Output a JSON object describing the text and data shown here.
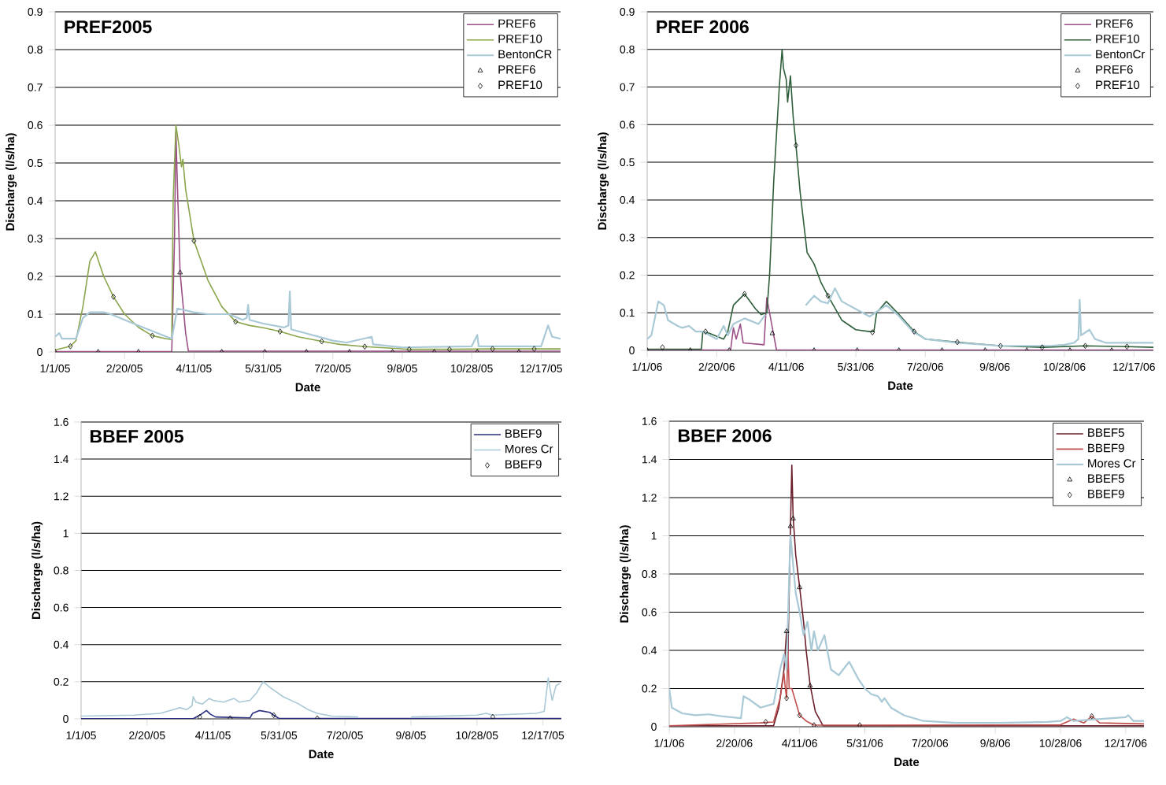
{
  "chart_data": [
    {
      "type": "line",
      "title": "PREF2005",
      "xlabel": "Date",
      "ylabel": "Discharge (l/s/ha)",
      "grid": "y",
      "legend": "top right",
      "xlim": [
        "2005-01-01",
        "2005-12-31"
      ],
      "ylim": [
        0,
        0.9
      ],
      "yticks": [
        0,
        0.1,
        0.2,
        0.3,
        0.4,
        0.5,
        0.6,
        0.7,
        0.8,
        0.9
      ],
      "xticks": [
        {
          "value": "2005-01-01",
          "label": "1/1/05"
        },
        {
          "value": "2005-02-20",
          "label": "2/20/05"
        },
        {
          "value": "2005-04-11",
          "label": "4/11/05"
        },
        {
          "value": "2005-05-31",
          "label": "5/31/05"
        },
        {
          "value": "2005-07-20",
          "label": "7/20/05"
        },
        {
          "value": "2005-09-08",
          "label": "9/8/05"
        },
        {
          "value": "2005-10-28",
          "label": "10/28/05"
        },
        {
          "value": "2005-12-17",
          "label": "12/17/05"
        }
      ],
      "series": [
        {
          "name": "PREF6",
          "marker": "none",
          "color": "#9b4f86",
          "x": [
            "2005-01-01",
            "2005-03-26",
            "2005-03-28",
            "2005-03-29",
            "2005-03-30",
            "2005-04-01",
            "2005-04-05",
            "2005-04-07",
            "2005-12-31"
          ],
          "values": [
            0.001,
            0.001,
            0.3,
            0.58,
            0.45,
            0.21,
            0.05,
            0.002,
            0.002
          ]
        },
        {
          "name": "PREF10",
          "marker": "none",
          "color": "#8aa54b",
          "x": [
            "2005-01-01",
            "2005-01-12",
            "2005-01-16",
            "2005-01-21",
            "2005-01-26",
            "2005-01-30",
            "2005-02-05",
            "2005-02-12",
            "2005-02-20",
            "2005-03-02",
            "2005-03-12",
            "2005-03-22",
            "2005-03-26",
            "2005-03-27",
            "2005-03-29",
            "2005-03-31",
            "2005-04-02",
            "2005-04-03",
            "2005-04-05",
            "2005-04-11",
            "2005-04-21",
            "2005-05-01",
            "2005-05-11",
            "2005-05-21",
            "2005-05-31",
            "2005-06-12",
            "2005-06-25",
            "2005-07-12",
            "2005-07-25",
            "2005-08-12",
            "2005-09-13",
            "2005-10-12",
            "2005-11-12",
            "2005-12-12",
            "2005-12-31"
          ],
          "values": [
            0.005,
            0.015,
            0.03,
            0.12,
            0.24,
            0.265,
            0.2,
            0.146,
            0.1,
            0.065,
            0.043,
            0.035,
            0.033,
            0.4,
            0.6,
            0.55,
            0.49,
            0.51,
            0.43,
            0.294,
            0.19,
            0.12,
            0.08,
            0.07,
            0.064,
            0.054,
            0.04,
            0.028,
            0.02,
            0.014,
            0.007,
            0.007,
            0.008,
            0.008,
            0.008
          ]
        },
        {
          "name": "BentonCR",
          "marker": "none",
          "color": "#a9c9d6",
          "x": [
            "2005-01-01",
            "2005-01-04",
            "2005-01-06",
            "2005-01-16",
            "2005-01-21",
            "2005-01-26",
            "2005-02-05",
            "2005-02-10",
            "2005-03-02",
            "2005-03-26",
            "2005-03-30",
            "2005-04-11",
            "2005-04-21",
            "2005-05-06",
            "2005-05-16",
            "2005-05-19",
            "2005-05-20",
            "2005-05-21",
            "2005-05-31",
            "2005-06-15",
            "2005-06-18",
            "2005-06-19",
            "2005-06-20",
            "2005-06-30",
            "2005-07-20",
            "2005-07-30",
            "2005-08-17",
            "2005-08-18",
            "2005-09-08",
            "2005-10-28",
            "2005-11-01",
            "2005-11-02",
            "2005-12-17",
            "2005-12-22",
            "2005-12-25",
            "2005-12-31"
          ],
          "values": [
            0.04,
            0.05,
            0.035,
            0.035,
            0.09,
            0.105,
            0.105,
            0.1,
            0.07,
            0.035,
            0.115,
            0.105,
            0.1,
            0.1,
            0.085,
            0.09,
            0.125,
            0.085,
            0.075,
            0.065,
            0.07,
            0.16,
            0.06,
            0.05,
            0.03,
            0.025,
            0.04,
            0.02,
            0.012,
            0.015,
            0.045,
            0.015,
            0.015,
            0.07,
            0.04,
            0.035
          ]
        },
        {
          "name": "PREF6",
          "type": "scatter",
          "marker": "triangle",
          "color": "#000000",
          "x": [
            "2005-01-01",
            "2005-02-01",
            "2005-03-02",
            "2005-04-01",
            "2005-05-01",
            "2005-06-01",
            "2005-07-01",
            "2005-08-01",
            "2005-09-01",
            "2005-10-01",
            "2005-11-01",
            "2005-12-01"
          ],
          "values": [
            0,
            0,
            0,
            0.21,
            0,
            0,
            0,
            0,
            0,
            0,
            0,
            0
          ]
        },
        {
          "name": "PREF10",
          "type": "scatter",
          "marker": "diamond",
          "color": "#000000",
          "x": [
            "2005-01-12",
            "2005-02-12",
            "2005-03-12",
            "2005-04-11",
            "2005-05-11",
            "2005-06-12",
            "2005-07-12",
            "2005-08-12",
            "2005-09-13",
            "2005-10-12",
            "2005-11-12",
            "2005-12-12"
          ],
          "values": [
            0.015,
            0.146,
            0.043,
            0.294,
            0.08,
            0.054,
            0.028,
            0.014,
            0.007,
            0.007,
            0.008,
            0.008
          ]
        }
      ]
    },
    {
      "type": "line",
      "title": "PREF 2006",
      "xlabel": "Date",
      "ylabel": "Discharge (l/s/ha)",
      "grid": "y",
      "legend": "top right",
      "xlim": [
        "2006-01-01",
        "2006-12-31"
      ],
      "ylim": [
        0,
        0.9
      ],
      "yticks": [
        0,
        0.1,
        0.2,
        0.3,
        0.4,
        0.5,
        0.6,
        0.7,
        0.8,
        0.9
      ],
      "xticks": [
        {
          "value": "2006-01-01",
          "label": "1/1/06"
        },
        {
          "value": "2006-02-20",
          "label": "2/20/06"
        },
        {
          "value": "2006-04-11",
          "label": "4/11/06"
        },
        {
          "value": "2006-05-31",
          "label": "5/31/06"
        },
        {
          "value": "2006-07-20",
          "label": "7/20/06"
        },
        {
          "value": "2006-09-08",
          "label": "9/8/06"
        },
        {
          "value": "2006-10-28",
          "label": "10/28/06"
        },
        {
          "value": "2006-12-17",
          "label": "12/17/06"
        }
      ],
      "series": [
        {
          "name": "PREF6",
          "marker": "none",
          "color": "#9b4f86",
          "x": [
            "2006-01-01",
            "2006-03-02",
            "2006-03-04",
            "2006-03-06",
            "2006-03-09",
            "2006-03-11",
            "2006-03-26",
            "2006-03-28",
            "2006-03-30",
            "2006-04-02",
            "2006-04-04",
            "2006-12-31"
          ],
          "values": [
            0.001,
            0.001,
            0.06,
            0.03,
            0.07,
            0.02,
            0.015,
            0.14,
            0.1,
            0.04,
            0.001,
            0.001
          ]
        },
        {
          "name": "PREF10",
          "marker": "none",
          "color": "#2e5e3a",
          "x": [
            "2006-01-01",
            "2006-02-09",
            "2006-02-10",
            "2006-02-15",
            "2006-02-25",
            "2006-02-28",
            "2006-03-04",
            "2006-03-12",
            "2006-03-20",
            "2006-03-24",
            "2006-03-28",
            "2006-03-30",
            "2006-04-02",
            "2006-04-06",
            "2006-04-08",
            "2006-04-09",
            "2006-04-11",
            "2006-04-12",
            "2006-04-14",
            "2006-04-16",
            "2006-04-18",
            "2006-04-21",
            "2006-04-26",
            "2006-05-01",
            "2006-05-06",
            "2006-05-11",
            "2006-05-21",
            "2006-05-31",
            "2006-06-10",
            "2006-06-13",
            "2006-06-15",
            "2006-06-22",
            "2006-06-30",
            "2006-07-12",
            "2006-07-20",
            "2006-08-12",
            "2006-09-12",
            "2006-10-12",
            "2006-11-12",
            "2006-12-12",
            "2006-12-31"
          ],
          "values": [
            0.003,
            0.003,
            0.05,
            0.045,
            0.03,
            0.05,
            0.12,
            0.15,
            0.11,
            0.095,
            0.1,
            0.2,
            0.45,
            0.7,
            0.8,
            0.75,
            0.72,
            0.66,
            0.73,
            0.62,
            0.545,
            0.42,
            0.26,
            0.23,
            0.18,
            0.145,
            0.08,
            0.055,
            0.05,
            0.05,
            0.1,
            0.13,
            0.1,
            0.05,
            0.03,
            0.022,
            0.012,
            0.008,
            0.012,
            0.01,
            0.008
          ]
        },
        {
          "name": "BentonCr",
          "marker": "none",
          "color": "#a9c9d6",
          "x": [
            "2006-01-01",
            "2006-01-04",
            "2006-01-09",
            "2006-01-13",
            "2006-01-16",
            "2006-01-23",
            "2006-01-26",
            "2006-01-31",
            "2006-02-05",
            "2006-02-10",
            "2006-02-20",
            "2006-02-25",
            "2006-02-28",
            "2006-03-04",
            "2006-03-12",
            "2006-03-22",
            "2006-03-27",
            "2006-04-10",
            "2006-04-25",
            "2006-05-01",
            "2006-05-06",
            "2006-05-11",
            "2006-05-16",
            "2006-05-21",
            "2006-05-31",
            "2006-06-10",
            "2006-06-22",
            "2006-06-30",
            "2006-07-11",
            "2006-07-20",
            "2006-08-12",
            "2006-09-12",
            "2006-10-18",
            "2006-10-28",
            "2006-11-04",
            "2006-11-07",
            "2006-11-08",
            "2006-11-09",
            "2006-11-15",
            "2006-11-19",
            "2006-11-27",
            "2006-12-12",
            "2006-12-31"
          ],
          "values": [
            0.03,
            0.04,
            0.13,
            0.12,
            0.08,
            0.065,
            0.06,
            0.065,
            0.05,
            0.05,
            0.03,
            0.065,
            0.04,
            0.07,
            0.085,
            0.07,
            0.095,
            null,
            0.12,
            0.145,
            0.13,
            0.125,
            0.165,
            0.13,
            0.11,
            0.09,
            0.12,
            0.095,
            0.05,
            0.03,
            0.02,
            0.012,
            0.012,
            0.015,
            0.02,
            0.03,
            0.135,
            0.04,
            0.055,
            0.03,
            0.02,
            0.02,
            0.02
          ]
        },
        {
          "name": "PREF6",
          "type": "scatter",
          "marker": "triangle",
          "color": "#000000",
          "x": [
            "2006-01-01",
            "2006-02-01",
            "2006-03-01",
            "2006-04-01",
            "2006-05-01",
            "2006-06-01",
            "2006-07-01",
            "2006-08-01",
            "2006-09-01",
            "2006-10-01",
            "2006-11-01",
            "2006-12-01"
          ],
          "values": [
            0,
            0,
            0,
            0.045,
            0,
            0,
            0,
            0,
            0,
            0,
            0,
            0
          ]
        },
        {
          "name": "PREF10",
          "type": "scatter",
          "marker": "diamond",
          "color": "#000000",
          "x": [
            "2006-01-12",
            "2006-02-12",
            "2006-03-12",
            "2006-04-18",
            "2006-05-11",
            "2006-06-12",
            "2006-07-12",
            "2006-08-12",
            "2006-09-12",
            "2006-10-12",
            "2006-11-12",
            "2006-12-12"
          ],
          "values": [
            0.008,
            0.05,
            0.15,
            0.545,
            0.145,
            0.048,
            0.05,
            0.022,
            0.012,
            0.008,
            0.012,
            0.01
          ]
        }
      ]
    },
    {
      "type": "line",
      "title": "BBEF 2005",
      "xlabel": "Date",
      "ylabel": "Discharge (l/s/ha)",
      "grid": "y",
      "legend": "top right",
      "xlim": [
        "2005-01-01",
        "2005-12-31"
      ],
      "ylim": [
        0,
        1.6
      ],
      "yticks": [
        0,
        0.2,
        0.4,
        0.6,
        0.8,
        1,
        1.2,
        1.4,
        1.6
      ],
      "xticks": [
        {
          "value": "2005-01-01",
          "label": "1/1/05"
        },
        {
          "value": "2005-02-20",
          "label": "2/20/05"
        },
        {
          "value": "2005-04-11",
          "label": "4/11/05"
        },
        {
          "value": "2005-05-31",
          "label": "5/31/05"
        },
        {
          "value": "2005-07-20",
          "label": "7/20/05"
        },
        {
          "value": "2005-09-08",
          "label": "9/8/05"
        },
        {
          "value": "2005-10-28",
          "label": "10/28/05"
        },
        {
          "value": "2005-12-17",
          "label": "12/17/05"
        }
      ],
      "series": [
        {
          "name": "BBEF9",
          "marker": "none",
          "color": "#2b2f80",
          "x": [
            "2005-01-01",
            "2005-03-27",
            "2005-04-01",
            "2005-04-06",
            "2005-04-09",
            "2005-04-13",
            "2005-05-09",
            "2005-05-11",
            "2005-05-16",
            "2005-05-24",
            "2005-05-27",
            "2005-05-31",
            "2005-12-31"
          ],
          "values": [
            0.001,
            0.001,
            0.02,
            0.045,
            0.025,
            0.01,
            0.005,
            0.03,
            0.045,
            0.035,
            0.02,
            0.002,
            0.002
          ]
        },
        {
          "name": "Mores Cr",
          "marker": "none",
          "color": "#a9c9d6",
          "x": [
            "2005-01-01",
            "2005-02-10",
            "2005-03-02",
            "2005-03-12",
            "2005-03-17",
            "2005-03-22",
            "2005-03-26",
            "2005-03-27",
            "2005-03-29",
            "2005-04-03",
            "2005-04-08",
            "2005-04-11",
            "2005-04-19",
            "2005-04-27",
            "2005-05-01",
            "2005-05-09",
            "2005-05-14",
            "2005-05-19",
            "2005-05-24",
            "2005-06-03",
            "2005-06-15",
            "2005-06-22",
            "2005-06-29",
            "2005-07-10",
            "2005-07-30",
            "2005-08-18",
            "2005-09-08",
            "2005-10-28",
            "2005-11-04",
            "2005-11-09",
            "2005-12-12",
            "2005-12-18",
            "2005-12-21",
            "2005-12-24",
            "2005-12-27",
            "2005-12-30"
          ],
          "values": [
            0.015,
            0.02,
            0.03,
            0.05,
            0.06,
            0.05,
            0.07,
            0.12,
            0.09,
            0.08,
            0.11,
            0.1,
            0.09,
            0.11,
            0.09,
            0.1,
            0.14,
            0.2,
            0.17,
            0.12,
            0.08,
            0.05,
            0.03,
            0.015,
            0.01,
            null,
            0.01,
            0.02,
            0.03,
            0.02,
            0.03,
            0.04,
            0.22,
            0.1,
            0.18,
            0.19
          ]
        },
        {
          "name": "BBEF9",
          "type": "scatter",
          "marker": "diamond",
          "color": "#000000",
          "x": [
            "2005-04-01",
            "2005-04-24",
            "2005-05-27",
            "2005-06-29",
            "2005-11-09"
          ],
          "values": [
            0.01,
            0.003,
            0.02,
            0.003,
            0.01
          ]
        }
      ]
    },
    {
      "type": "line",
      "title": "BBEF 2006",
      "xlabel": "Date",
      "ylabel": "Discharge (l/s/ha)",
      "grid": "y",
      "legend": "top right",
      "xlim": [
        "2006-01-01",
        "2006-12-31"
      ],
      "ylim": [
        0,
        1.6
      ],
      "yticks": [
        0,
        0.2,
        0.4,
        0.6,
        0.8,
        1,
        1.2,
        1.4,
        1.6
      ],
      "xticks": [
        {
          "value": "2006-01-01",
          "label": "1/1/06"
        },
        {
          "value": "2006-02-20",
          "label": "2/20/06"
        },
        {
          "value": "2006-04-11",
          "label": "4/11/06"
        },
        {
          "value": "2006-05-31",
          "label": "5/31/06"
        },
        {
          "value": "2006-07-20",
          "label": "7/20/06"
        },
        {
          "value": "2006-09-08",
          "label": "9/8/06"
        },
        {
          "value": "2006-10-28",
          "label": "10/28/06"
        },
        {
          "value": "2006-12-17",
          "label": "12/17/06"
        }
      ],
      "series": [
        {
          "name": "BBEF5",
          "marker": "none",
          "color": "#6b1f2a",
          "x": [
            "2006-01-01",
            "2006-03-22",
            "2006-03-26",
            "2006-03-28",
            "2006-03-30",
            "2006-04-01",
            "2006-04-02",
            "2006-04-04",
            "2006-04-05",
            "2006-04-06",
            "2006-04-08",
            "2006-04-11",
            "2006-04-14",
            "2006-04-16",
            "2006-04-19",
            "2006-04-23",
            "2006-04-29",
            "2006-12-31"
          ],
          "values": [
            0.005,
            0.005,
            0.1,
            0.2,
            0.3,
            0.5,
            0.38,
            1.05,
            1.37,
            1.1,
            0.9,
            0.73,
            0.55,
            0.4,
            0.22,
            0.08,
            0.005,
            0.005
          ]
        },
        {
          "name": "BBEF9",
          "marker": "none",
          "color": "#c0504d",
          "x": [
            "2006-01-01",
            "2006-03-12",
            "2006-03-22",
            "2006-03-27",
            "2006-03-30",
            "2006-03-31",
            "2006-04-01",
            "2006-04-02",
            "2006-04-03",
            "2006-04-05",
            "2006-04-11",
            "2006-04-16",
            "2006-04-22",
            "2006-05-27",
            "2006-10-28",
            "2006-11-07",
            "2006-11-15",
            "2006-11-21",
            "2006-11-27",
            "2006-12-31"
          ],
          "values": [
            0.005,
            0.02,
            0.025,
            0.15,
            0.28,
            0.2,
            0.15,
            0.4,
            0.2,
            0.2,
            0.06,
            0.03,
            0.008,
            0.008,
            0.01,
            0.04,
            0.02,
            0.055,
            0.02,
            0.015
          ]
        },
        {
          "name": "Mores Cr",
          "marker": "none",
          "color": "#a9c9d6",
          "x": [
            "2006-01-01",
            "2006-01-03",
            "2006-01-11",
            "2006-01-21",
            "2006-01-31",
            "2006-02-10",
            "2006-02-25",
            "2006-02-27",
            "2006-03-04",
            "2006-03-12",
            "2006-03-22",
            "2006-03-27",
            "2006-03-30",
            "2006-04-01",
            "2006-04-03",
            "2006-04-04",
            "2006-04-06",
            "2006-04-08",
            "2006-04-11",
            "2006-04-14",
            "2006-04-17",
            "2006-04-20",
            "2006-04-22",
            "2006-04-25",
            "2006-04-30",
            "2006-05-05",
            "2006-05-11",
            "2006-05-19",
            "2006-05-26",
            "2006-05-31",
            "2006-06-05",
            "2006-06-10",
            "2006-06-13",
            "2006-06-15",
            "2006-06-20",
            "2006-06-30",
            "2006-07-15",
            "2006-08-09",
            "2006-09-08",
            "2006-10-18",
            "2006-10-28",
            "2006-11-02",
            "2006-11-07",
            "2006-11-27",
            "2006-12-17",
            "2006-12-19",
            "2006-12-23",
            "2006-12-31"
          ],
          "values": [
            0.2,
            0.1,
            0.07,
            0.06,
            0.065,
            0.055,
            0.045,
            0.16,
            0.14,
            0.1,
            0.12,
            0.3,
            0.38,
            0.3,
            0.8,
            1.0,
            0.85,
            0.7,
            0.6,
            0.48,
            0.55,
            0.4,
            0.5,
            0.4,
            0.48,
            0.3,
            0.27,
            0.34,
            0.25,
            0.2,
            0.17,
            0.16,
            0.13,
            0.15,
            0.1,
            0.06,
            0.03,
            0.02,
            0.02,
            0.025,
            0.03,
            0.05,
            0.03,
            0.04,
            0.05,
            0.06,
            0.03,
            0.03
          ]
        },
        {
          "name": "BBEF5",
          "type": "scatter",
          "marker": "triangle",
          "color": "#000000",
          "x": [
            "2006-04-01",
            "2006-04-04",
            "2006-04-06",
            "2006-04-11",
            "2006-04-19"
          ],
          "values": [
            0.5,
            1.05,
            1.09,
            0.73,
            0.215
          ]
        },
        {
          "name": "BBEF9",
          "type": "scatter",
          "marker": "diamond",
          "color": "#000000",
          "x": [
            "2006-03-16",
            "2006-04-01",
            "2006-04-11",
            "2006-04-22",
            "2006-05-27",
            "2006-11-21"
          ],
          "values": [
            0.025,
            0.15,
            0.06,
            0.008,
            0.008,
            0.055
          ]
        }
      ]
    }
  ]
}
